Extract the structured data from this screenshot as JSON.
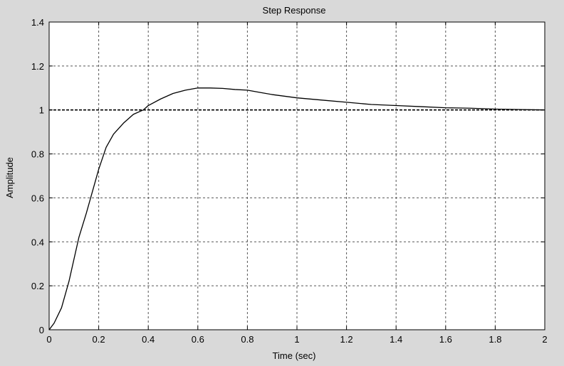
{
  "chart_data": {
    "type": "line",
    "title": "Step Response",
    "xlabel": "Time (sec)",
    "ylabel": "Amplitude",
    "xlim": [
      0,
      2
    ],
    "ylim": [
      0,
      1.4
    ],
    "xticks": [
      0,
      0.2,
      0.4,
      0.6,
      0.8,
      1,
      1.2,
      1.4,
      1.6,
      1.8,
      2
    ],
    "yticks": [
      0,
      0.2,
      0.4,
      0.6,
      0.8,
      1,
      1.2,
      1.4
    ],
    "xtick_labels": [
      "0",
      "0.2",
      "0.4",
      "0.6",
      "0.8",
      "1",
      "1.2",
      "1.4",
      "1.6",
      "1.8",
      "2"
    ],
    "ytick_labels": [
      "0",
      "0.2",
      "0.4",
      "0.6",
      "0.8",
      "1",
      "1.2",
      "1.4"
    ],
    "grid": true,
    "reference_line": {
      "y": 1
    },
    "series": [
      {
        "color": "#000000",
        "x": [
          0,
          0.02,
          0.05,
          0.08,
          0.1,
          0.12,
          0.15,
          0.18,
          0.2,
          0.23,
          0.26,
          0.3,
          0.34,
          0.38,
          0.4,
          0.45,
          0.5,
          0.55,
          0.6,
          0.65,
          0.7,
          0.75,
          0.8,
          0.85,
          0.9,
          1.0,
          1.1,
          1.2,
          1.3,
          1.4,
          1.5,
          1.6,
          1.7,
          1.8,
          1.9,
          2.0
        ],
        "y": [
          0,
          0.03,
          0.1,
          0.22,
          0.32,
          0.42,
          0.53,
          0.65,
          0.73,
          0.83,
          0.89,
          0.94,
          0.98,
          1.0,
          1.02,
          1.05,
          1.075,
          1.09,
          1.1,
          1.1,
          1.098,
          1.093,
          1.09,
          1.08,
          1.07,
          1.055,
          1.045,
          1.035,
          1.025,
          1.02,
          1.015,
          1.01,
          1.008,
          1.004,
          1.002,
          1.0
        ]
      }
    ]
  }
}
